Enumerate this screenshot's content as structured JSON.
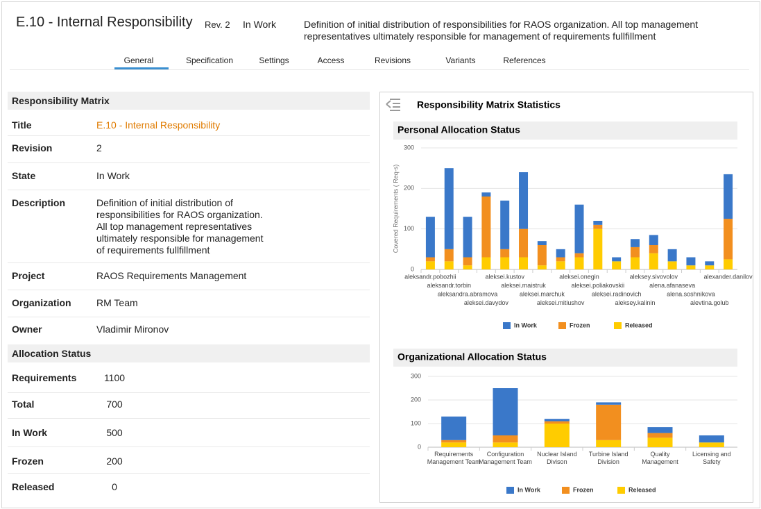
{
  "header": {
    "title": "E.10 - Internal Responsibility",
    "revision": "Rev. 2",
    "state": "In Work",
    "description": "Definition of initial distribution of responsibilities for RAOS organization. All top management representatives ultimately responsible for management of requirements fullfillment"
  },
  "tabs": [
    "General",
    "Specification",
    "Settings",
    "Access",
    "Revisions",
    "Variants",
    "References"
  ],
  "active_tab": 0,
  "responsibility_matrix": {
    "heading": "Responsibility Matrix",
    "rows": [
      [
        "Title",
        "E.10 - Internal Responsibility"
      ],
      [
        "Revision",
        "2"
      ],
      [
        "State",
        "In Work"
      ],
      [
        "Description",
        "Definition of initial distribution of responsibilities for RAOS organization. All top management  representatives ultimately responsible for management of requirements fullfillment"
      ],
      [
        "Project",
        "RAOS Requirements Management"
      ],
      [
        "Organization",
        "RM Team"
      ],
      [
        "Owner",
        "Vladimir Mironov"
      ]
    ]
  },
  "allocation_status": {
    "heading": "Allocation Status",
    "rows": [
      [
        "Requirements",
        1100
      ],
      [
        "Total",
        700
      ],
      [
        "In Work",
        500
      ],
      [
        "Frozen",
        200
      ],
      [
        "Released",
        0
      ]
    ]
  },
  "statistics_title": "Responsibility Matrix Statistics",
  "chart_data": [
    {
      "type": "bar",
      "stacked": true,
      "title": "Personal Allocation Status",
      "y_label": "Covered Requirements ( Req-s)",
      "categories": [
        "aleksandr.pobozhii",
        "aleksandr.torbin",
        "aleksandra.abramova",
        "aleksei.davydov",
        "aleksei.kustov",
        "aleksei.maistruk",
        "aleksei.marchuk",
        "aleksei.mitiushov",
        "aleksei.onegin",
        "aleksei.poliakovskii",
        "aleksei.radinovich",
        "aleksey.kalinin",
        "aleksey.sivovolov",
        "alena.afanaseva",
        "alena.soshnikova",
        "alevtina.golub",
        "alexander.danilov"
      ],
      "series": [
        {
          "name": "In Work",
          "color": "#3a78c9",
          "values": [
            100,
            200,
            100,
            10,
            120,
            140,
            10,
            20,
            120,
            10,
            10,
            20,
            25,
            30,
            20,
            10,
            110
          ]
        },
        {
          "name": "Frozen",
          "color": "#f28f1f",
          "values": [
            10,
            30,
            20,
            150,
            20,
            70,
            50,
            10,
            10,
            10,
            0,
            25,
            20,
            0,
            0,
            0,
            100
          ]
        },
        {
          "name": "Released",
          "color": "#ffcc00",
          "values": [
            20,
            20,
            10,
            30,
            30,
            30,
            10,
            20,
            30,
            100,
            20,
            30,
            40,
            20,
            10,
            10,
            25
          ]
        }
      ],
      "ylim": [
        0,
        300
      ],
      "yticks": [
        0,
        100,
        200,
        300
      ],
      "grid": true,
      "legend": "bottom"
    },
    {
      "type": "bar",
      "stacked": true,
      "title": "Organizational Allocation Status",
      "categories": [
        "Requirements Management Team",
        "Configuration Management Team",
        "Nuclear Island Divison",
        "Turbine Island Division",
        "Quality Management",
        "Licensing and Safety"
      ],
      "series": [
        {
          "name": "In Work",
          "color": "#3a78c9",
          "values": [
            100,
            200,
            10,
            10,
            25,
            30
          ]
        },
        {
          "name": "Frozen",
          "color": "#f28f1f",
          "values": [
            10,
            30,
            10,
            150,
            20,
            0
          ]
        },
        {
          "name": "Released",
          "color": "#ffcc00",
          "values": [
            20,
            20,
            100,
            30,
            40,
            20
          ]
        }
      ],
      "ylim": [
        0,
        300
      ],
      "yticks": [
        0,
        100,
        200,
        300
      ],
      "grid": true,
      "legend": "bottom"
    }
  ]
}
